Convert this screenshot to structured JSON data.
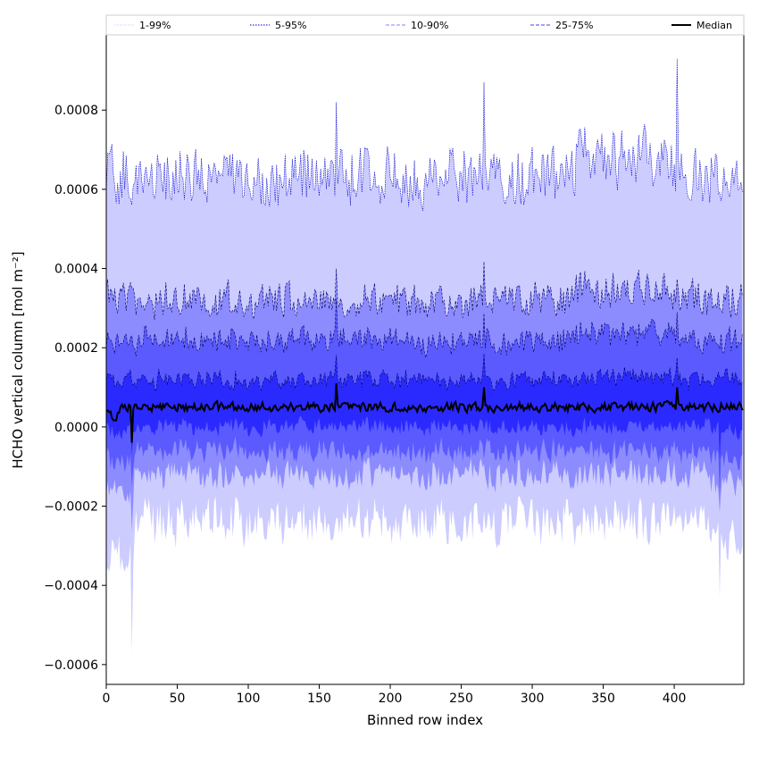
{
  "chart_data": {
    "type": "area",
    "title": "",
    "xlabel": "Binned row index",
    "ylabel": "HCHO vertical column [mol m⁻²]",
    "xlim": [
      0,
      449
    ],
    "ylim": [
      -0.00065,
      0.00099
    ],
    "x_ticks": [
      0,
      50,
      100,
      150,
      200,
      250,
      300,
      350,
      400
    ],
    "y_ticks": [
      -0.0006,
      -0.0004,
      -0.0002,
      0.0,
      0.0002,
      0.0004,
      0.0006,
      0.0008
    ],
    "y_tick_labels": [
      "−0.0006",
      "−0.0004",
      "−0.0002",
      "0.0000",
      "0.0002",
      "0.0004",
      "0.0006",
      "0.0008"
    ],
    "legend_position": "top",
    "legend": [
      {
        "label": "1-99%",
        "color": "#ccccff",
        "style": "dotted"
      },
      {
        "label": "5-95%",
        "color": "#0000cc",
        "style": "dotted"
      },
      {
        "label": "10-90%",
        "color": "#8080ff",
        "style": "dashed"
      },
      {
        "label": "25-75%",
        "color": "#4040ff",
        "style": "dashed"
      },
      {
        "label": "Median",
        "color": "#000000",
        "style": "solid"
      }
    ],
    "n_points": 449,
    "series": [
      {
        "name": "1-99%",
        "lower_mean": -0.00024,
        "upper_mean": 0.00063,
        "fill": "#ccccff"
      },
      {
        "name": "5-95%",
        "lower_mean": -0.00012,
        "upper_mean": 0.00032,
        "fill": "#8c8cff"
      },
      {
        "name": "10-90%",
        "lower_mean": -6e-05,
        "upper_mean": 0.00022,
        "fill": "#5a5aff"
      },
      {
        "name": "25-75%",
        "lower_mean": 0.0,
        "upper_mean": 0.00012,
        "fill": "#2a2aff"
      },
      {
        "name": "Median",
        "mean": 5e-05,
        "color": "#000000"
      }
    ],
    "spikes": [
      {
        "x": 18,
        "value_low": -0.00057,
        "median": -4e-05
      },
      {
        "x": 162,
        "value_high": 0.00082,
        "median": 0.00011
      },
      {
        "x": 266,
        "value_high": 0.00087,
        "median": 0.0001
      },
      {
        "x": 402,
        "value_high": 0.00093,
        "median": 0.0001
      },
      {
        "x": 432,
        "value_low": -0.00043,
        "median": 4e-05
      }
    ]
  }
}
